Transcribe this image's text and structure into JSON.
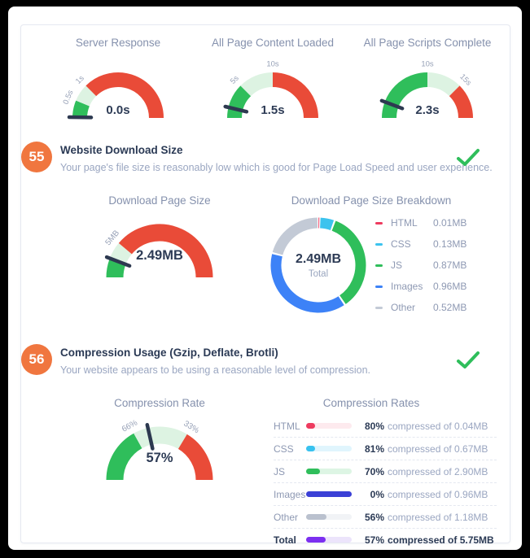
{
  "colors": {
    "green": "#2fbe5b",
    "light_green": "#ddf3e2",
    "red": "#e94b38",
    "navy": "#2d3b55",
    "muted_title": "#8591ad",
    "tick": "#97a1b7",
    "description": "#9aa6c1",
    "orange_badge": "#f0763f",
    "check_green": "#2fbe5b",
    "cyan": "#3cc3ee",
    "blue": "#3d82f7",
    "indigo": "#3b40d6",
    "gray": "#c3cad6",
    "purple": "#7c2ff0",
    "pink_red": "#ee3b5f",
    "needle": "#2d3950"
  },
  "sections": {
    "s55": {
      "number": "55",
      "title": "Website Download Size",
      "description": "Your page's file size is reasonably low which is good for Page Load Speed and user experience.",
      "status": "pass"
    },
    "s56": {
      "number": "56",
      "title": "Compression Usage (Gzip, Deflate, Brotli)",
      "description": "Your website appears to be using a reasonable level of compression.",
      "status": "pass"
    }
  },
  "chart_data": [
    {
      "id": "server_response",
      "type": "gauge",
      "title": "Server Response",
      "value": 0.0,
      "unit": "s",
      "value_label": "0.0s",
      "sweep_deg": 180,
      "needle_deg": 1,
      "ticks": [
        {
          "label": "0.5s",
          "deg": 22.5
        },
        {
          "label": "1s",
          "deg": 45
        }
      ],
      "segments": [
        {
          "from": 0,
          "to": 22.5,
          "color": "#2fbe5b"
        },
        {
          "from": 22.5,
          "to": 45,
          "color": "#ddf3e2"
        },
        {
          "from": 45,
          "to": 180,
          "color": "#e94b38"
        }
      ]
    },
    {
      "id": "content_loaded",
      "type": "gauge",
      "title": "All Page Content Loaded",
      "value": 1.5,
      "unit": "s",
      "value_label": "1.5s",
      "sweep_deg": 180,
      "needle_deg": 13.5,
      "ticks": [
        {
          "label": "5s",
          "deg": 45
        },
        {
          "label": "10s",
          "deg": 90
        }
      ],
      "segments": [
        {
          "from": 0,
          "to": 45,
          "color": "#2fbe5b"
        },
        {
          "from": 45,
          "to": 90,
          "color": "#ddf3e2"
        },
        {
          "from": 90,
          "to": 180,
          "color": "#e94b38"
        }
      ]
    },
    {
      "id": "scripts_complete",
      "type": "gauge",
      "title": "All Page Scripts Complete",
      "value": 2.3,
      "unit": "s",
      "value_label": "2.3s",
      "sweep_deg": 180,
      "needle_deg": 20.7,
      "ticks": [
        {
          "label": "10s",
          "deg": 90
        },
        {
          "label": "15s",
          "deg": 135
        }
      ],
      "segments": [
        {
          "from": 0,
          "to": 90,
          "color": "#2fbe5b"
        },
        {
          "from": 90,
          "to": 135,
          "color": "#ddf3e2"
        },
        {
          "from": 135,
          "to": 180,
          "color": "#e94b38"
        }
      ]
    },
    {
      "id": "download_size",
      "type": "gauge",
      "title": "Download Page Size",
      "value": 2.49,
      "unit": "MB",
      "value_label": "2.49MB",
      "sweep_deg": 180,
      "needle_deg": 21,
      "ticks": [
        {
          "label": "5MB",
          "deg": 40
        }
      ],
      "segments": [
        {
          "from": 0,
          "to": 20,
          "color": "#2fbe5b"
        },
        {
          "from": 20,
          "to": 40,
          "color": "#ddf3e2"
        },
        {
          "from": 40,
          "to": 180,
          "color": "#e94b38"
        }
      ]
    },
    {
      "id": "size_breakdown",
      "type": "donut",
      "title": "Download Page Size Breakdown",
      "center_value": "2.49MB",
      "center_label": "Total",
      "slices": [
        {
          "label": "HTML",
          "value_mb": 0.01,
          "display": "0.01MB",
          "color": "#ee3b5f"
        },
        {
          "label": "CSS",
          "value_mb": 0.13,
          "display": "0.13MB",
          "color": "#3cc3ee"
        },
        {
          "label": "JS",
          "value_mb": 0.87,
          "display": "0.87MB",
          "color": "#2fbe5b"
        },
        {
          "label": "Images",
          "value_mb": 0.96,
          "display": "0.96MB",
          "color": "#3d82f7"
        },
        {
          "label": "Other",
          "value_mb": 0.52,
          "display": "0.52MB",
          "color": "#c3cad6"
        }
      ]
    },
    {
      "id": "compression_rate",
      "type": "gauge",
      "title": "Compression Rate",
      "value": 57,
      "unit": "%",
      "value_label": "57%",
      "sweep_deg": 180,
      "needle_deg": 77.4,
      "ticks": [
        {
          "label": "66%",
          "deg": 61
        },
        {
          "label": "33%",
          "deg": 121
        }
      ],
      "segments": [
        {
          "from": 0,
          "to": 61,
          "color": "#2fbe5b"
        },
        {
          "from": 61,
          "to": 121,
          "color": "#ddf3e2"
        },
        {
          "from": 121,
          "to": 180,
          "color": "#e94b38"
        }
      ]
    },
    {
      "id": "compression_rates",
      "type": "bars",
      "title": "Compression Rates",
      "rows": [
        {
          "label": "HTML",
          "rate_pct": 80,
          "rate_label": "80%",
          "suffix": "compressed of 0.04MB",
          "bar_fill_pct": 20,
          "color": "#ee3b5f",
          "track": "#fdeaee",
          "bold_row": false
        },
        {
          "label": "CSS",
          "rate_pct": 81,
          "rate_label": "81%",
          "suffix": "compressed of 0.67MB",
          "bar_fill_pct": 19,
          "color": "#38c2ef",
          "track": "#e0f5fd",
          "bold_row": false
        },
        {
          "label": "JS",
          "rate_pct": 70,
          "rate_label": "70%",
          "suffix": "compressed of 2.90MB",
          "bar_fill_pct": 30,
          "color": "#2fbe5b",
          "track": "#ddf5e4",
          "bold_row": false
        },
        {
          "label": "Images",
          "rate_pct": 0,
          "rate_label": "0%",
          "suffix": "compressed of 0.96MB",
          "bar_fill_pct": 100,
          "color": "#3b40d6",
          "track": "#e4e5f9",
          "bold_row": false
        },
        {
          "label": "Other",
          "rate_pct": 56,
          "rate_label": "56%",
          "suffix": "compressed of 1.18MB",
          "bar_fill_pct": 44,
          "color": "#bac1ce",
          "track": "#f1f3f6",
          "bold_row": false
        },
        {
          "label": "Total",
          "rate_pct": 57,
          "rate_label": "57%",
          "suffix": "compressed of 5.75MB",
          "bar_fill_pct": 43,
          "color": "#7c2ff0",
          "track": "#ece4fb",
          "bold_row": true
        }
      ]
    }
  ]
}
